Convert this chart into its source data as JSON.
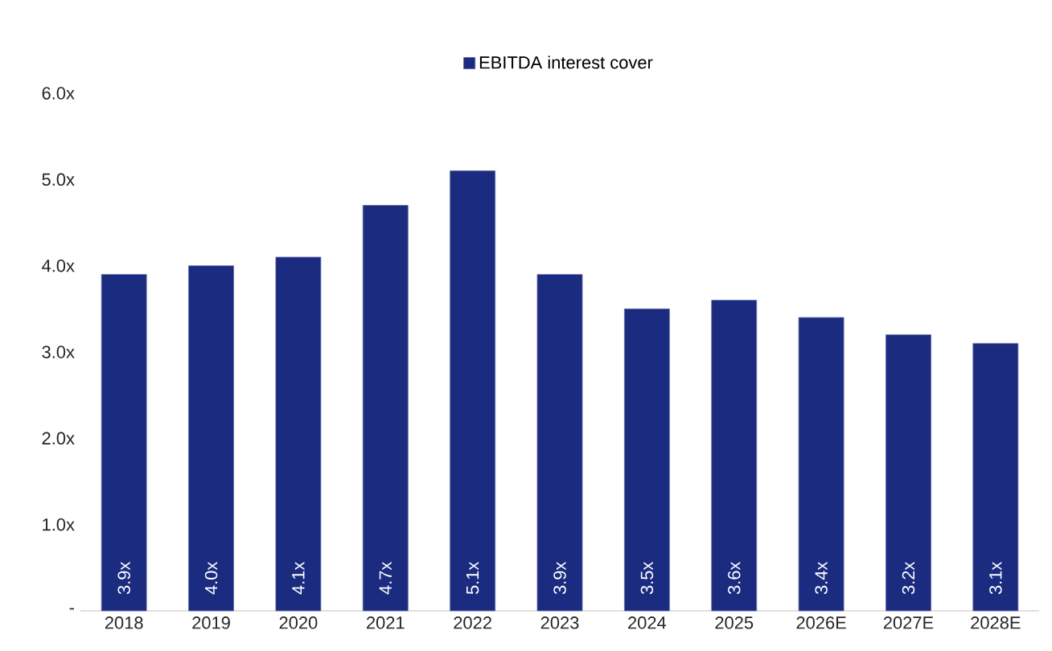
{
  "chart_data": {
    "type": "bar",
    "categories": [
      "2018",
      "2019",
      "2020",
      "2021",
      "2022",
      "2023",
      "2024",
      "2025",
      "2026E",
      "2027E",
      "2028E"
    ],
    "series": [
      {
        "name": "EBITDA interest cover",
        "color": "#1a2b80",
        "values": [
          3.9,
          4.0,
          4.1,
          4.7,
          5.1,
          3.9,
          3.5,
          3.6,
          3.4,
          3.2,
          3.1
        ],
        "value_labels": [
          "3.9x",
          "4.0x",
          "4.1x",
          "4.7x",
          "5.1x",
          "3.9x",
          "3.5x",
          "3.6x",
          "3.4x",
          "3.2x",
          "3.1x"
        ]
      }
    ],
    "ylim": [
      0,
      6
    ],
    "yticks": [
      {
        "value": 0,
        "label": "-"
      },
      {
        "value": 1,
        "label": "1.0x"
      },
      {
        "value": 2,
        "label": "2.0x"
      },
      {
        "value": 3,
        "label": "3.0x"
      },
      {
        "value": 4,
        "label": "4.0x"
      },
      {
        "value": 5,
        "label": "5.0x"
      },
      {
        "value": 6,
        "label": "6.0x"
      }
    ],
    "legend": "top"
  }
}
